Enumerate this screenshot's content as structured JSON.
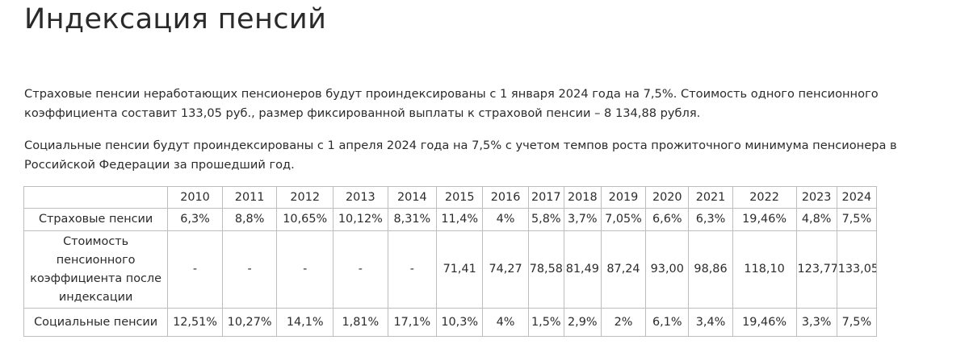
{
  "title": "Индексация пенсий",
  "paragraphs": [
    "Страховые пенсии неработающих пенсионеров будут проиндексированы с 1 января 2024 года на 7,5%. Стоимость одного пенсионного коэффициента составит 133,05 руб., размер фиксированной выплаты к страховой пенсии – 8 134,88 рубля.",
    "Социальные пенсии будут проиндексированы с 1 апреля 2024 года на 7,5% с учетом темпов роста прожиточного минимума пенсионера в Российской Федерации за прошедший год."
  ],
  "table": {
    "corner": "",
    "years": [
      "2010",
      "2011",
      "2012",
      "2013",
      "2014",
      "2015",
      "2016",
      "2017",
      "2018",
      "2019",
      "2020",
      "2021",
      "2022",
      "2023",
      "2024"
    ],
    "rows": [
      {
        "label": "Страховые пенсии",
        "values": [
          "6,3%",
          "8,8%",
          "10,65%",
          "10,12%",
          "8,31%",
          "11,4%",
          "4%",
          "5,8%",
          "3,7%",
          "7,05%",
          "6,6%",
          "6,3%",
          "19,46%",
          "4,8%",
          "7,5%"
        ]
      },
      {
        "label": "Стоимость пенсионного коэффициента после индексации",
        "values": [
          "-",
          "-",
          "-",
          "-",
          "-",
          "71,41",
          "74,27",
          "78,58",
          "81,49",
          "87,24",
          "93,00",
          "98,86",
          "118,10",
          "123,77",
          "133,05"
        ]
      },
      {
        "label": "Социальные пенсии",
        "values": [
          "12,51%",
          "10,27%",
          "14,1%",
          "1,81%",
          "17,1%",
          "10,3%",
          "4%",
          "1,5%",
          "2,9%",
          "2%",
          "6,1%",
          "3,4%",
          "19,46%",
          "3,3%",
          "7,5%"
        ]
      }
    ]
  }
}
